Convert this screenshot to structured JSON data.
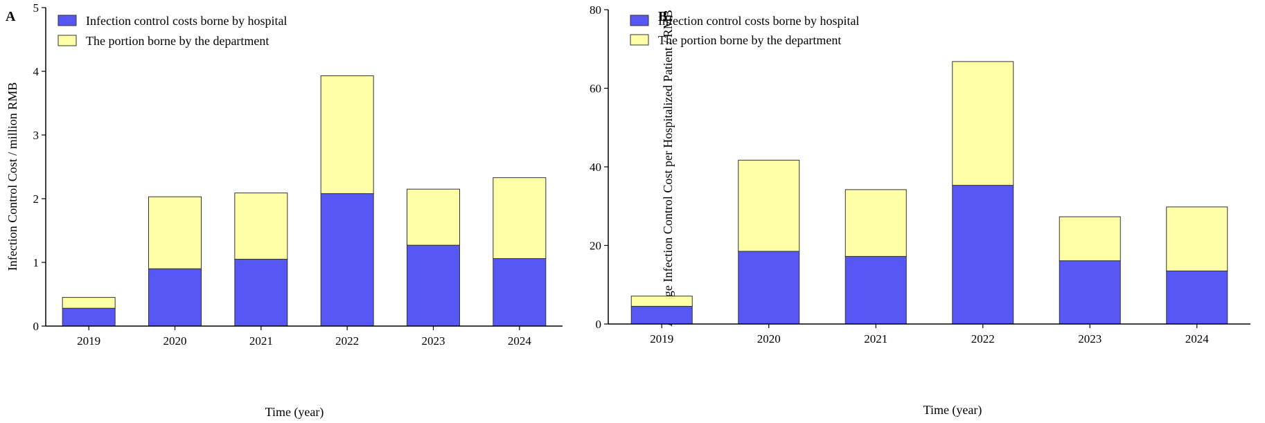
{
  "colors": {
    "hospital": "#5757f5",
    "department": "#ffffa8",
    "axis": "#000000"
  },
  "chart_data": [
    {
      "panel": "A",
      "type": "bar",
      "stacked": true,
      "categories": [
        "2019",
        "2020",
        "2021",
        "2022",
        "2023",
        "2024"
      ],
      "series": [
        {
          "name": "Infection control costs borne by hospital",
          "values": [
            0.28,
            0.9,
            1.05,
            2.08,
            1.27,
            1.06
          ]
        },
        {
          "name": "The portion borne by the department",
          "values": [
            0.17,
            1.13,
            1.04,
            1.85,
            0.88,
            1.27
          ]
        }
      ],
      "xlabel": "Time (year)",
      "ylabel": "Infection Control Cost / million RMB",
      "ylim": [
        0,
        5
      ],
      "yticks": [
        "0",
        "1",
        "2",
        "3",
        "4",
        "5"
      ],
      "legend_position": "top-left"
    },
    {
      "panel": "B",
      "type": "bar",
      "stacked": true,
      "categories": [
        "2019",
        "2020",
        "2021",
        "2022",
        "2023",
        "2024"
      ],
      "series": [
        {
          "name": "Infection control costs borne by hospital",
          "values": [
            4.5,
            18.5,
            17.2,
            35.3,
            16.1,
            13.5
          ]
        },
        {
          "name": "The portion borne by the department",
          "values": [
            2.6,
            23.2,
            17.0,
            31.5,
            11.2,
            16.3
          ]
        }
      ],
      "xlabel": "Time (year)",
      "ylabel": "Average Infection Control Cost per Hospitalized Patient / RMB",
      "ylim": [
        0,
        80
      ],
      "yticks": [
        "0",
        "20",
        "40",
        "60",
        "80"
      ],
      "legend_position": "top-left"
    }
  ]
}
